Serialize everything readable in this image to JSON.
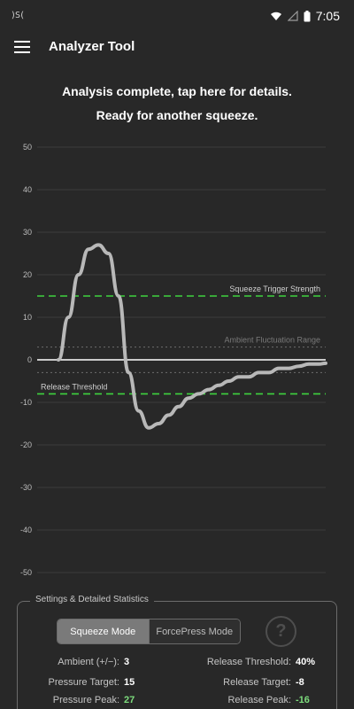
{
  "status": {
    "left_glyph": ")S(",
    "time": "7:05"
  },
  "appbar": {
    "title": "Analyzer Tool"
  },
  "analysis": {
    "line1": "Analysis complete, tap here for details.",
    "line2": "Ready for another squeeze."
  },
  "chart_data": {
    "type": "line",
    "y_ticks": [
      50,
      40,
      30,
      20,
      10,
      0,
      -10,
      -20,
      -30,
      -40,
      -50
    ],
    "ylim": [
      -50,
      50
    ],
    "grid": true,
    "x": [
      0,
      3,
      6,
      9,
      12,
      15,
      18,
      21,
      24,
      27,
      30,
      33,
      36,
      39,
      42,
      45,
      48,
      51,
      54,
      57,
      60,
      63,
      66,
      69,
      72,
      75,
      78,
      80
    ],
    "series": [
      {
        "values": [
          0,
          10,
          20,
          26,
          27,
          25,
          15,
          -3,
          -12,
          -16,
          -15,
          -13,
          -11,
          -9,
          -8,
          -7,
          -6,
          -5,
          -4,
          -4,
          -3,
          -3,
          -2,
          -2,
          -1.5,
          -1,
          -1,
          -0.8
        ]
      }
    ],
    "reference_lines": [
      {
        "label": "Squeeze Trigger Strength",
        "y": 15,
        "style": "dashed-green"
      },
      {
        "label": "Ambient Fluctuation Range",
        "y": 3,
        "style": "dotted-gray"
      },
      {
        "label": "",
        "y": -3,
        "style": "dotted-gray"
      },
      {
        "label": "Release Threshold",
        "y": -8,
        "style": "dashed-green"
      }
    ]
  },
  "panel": {
    "title": "Settings & Detailed Statistics",
    "mode_active": "Squeeze Mode",
    "mode_inactive": "ForcePress Mode",
    "help_glyph": "?",
    "stats_left": [
      {
        "label": "Ambient (+/−):",
        "value": "3"
      },
      {
        "label": "Pressure Target:",
        "value": "15"
      },
      {
        "label": "Pressure Peak:",
        "value": "27"
      }
    ],
    "stats_right": [
      {
        "label": "Release Threshold:",
        "value": "40%"
      },
      {
        "label": "Release Target:",
        "value": "-8"
      },
      {
        "label": "Release Peak:",
        "value": "-16"
      }
    ]
  },
  "colors": {
    "background": "#282828",
    "curve": "#b8b8b8",
    "threshold": "#3fd33f",
    "ambient": "#6e6e6e",
    "peak_value": "#7ddc7d"
  }
}
